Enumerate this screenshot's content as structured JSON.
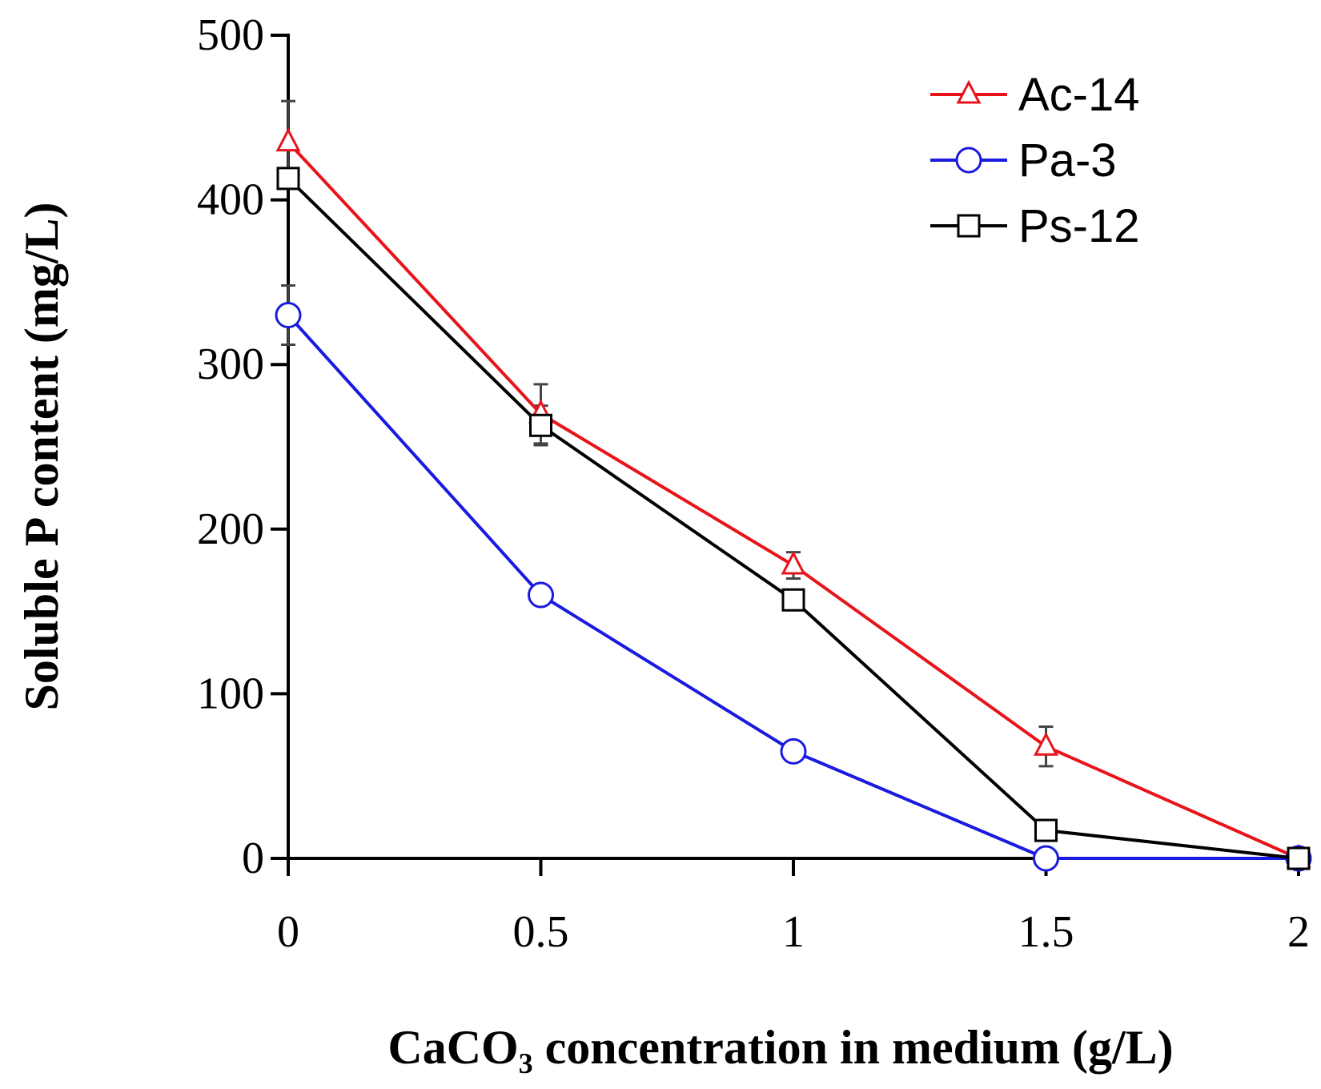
{
  "chart_data": {
    "type": "line",
    "title": "",
    "xlabel": "CaCO₃ concentration in medium (g/L)",
    "ylabel": "Soluble P content (mg/L)",
    "x": [
      0,
      0.5,
      1,
      1.5,
      2
    ],
    "x_tick_labels": [
      "0",
      "0.5",
      "1",
      "1.5",
      "2"
    ],
    "y_ticks": [
      0,
      100,
      200,
      300,
      400,
      500
    ],
    "xlim": [
      0,
      2
    ],
    "ylim": [
      0,
      500
    ],
    "grid": false,
    "legend_position": "top-right",
    "series": [
      {
        "name": "Ac-14",
        "color": "#e8141b",
        "marker": "triangle",
        "values": [
          435,
          270,
          178,
          68,
          0
        ],
        "error": [
          25,
          18,
          8,
          12,
          0
        ]
      },
      {
        "name": "Pa-3",
        "color": "#1a1ae0",
        "marker": "circle",
        "values": [
          330,
          160,
          65,
          0,
          0
        ],
        "error": [
          18,
          0,
          0,
          0,
          0
        ]
      },
      {
        "name": "Ps-12",
        "color": "#000000",
        "marker": "square",
        "values": [
          413,
          263,
          157,
          17,
          0
        ],
        "error": [
          0,
          12,
          0,
          0,
          0
        ]
      }
    ]
  }
}
